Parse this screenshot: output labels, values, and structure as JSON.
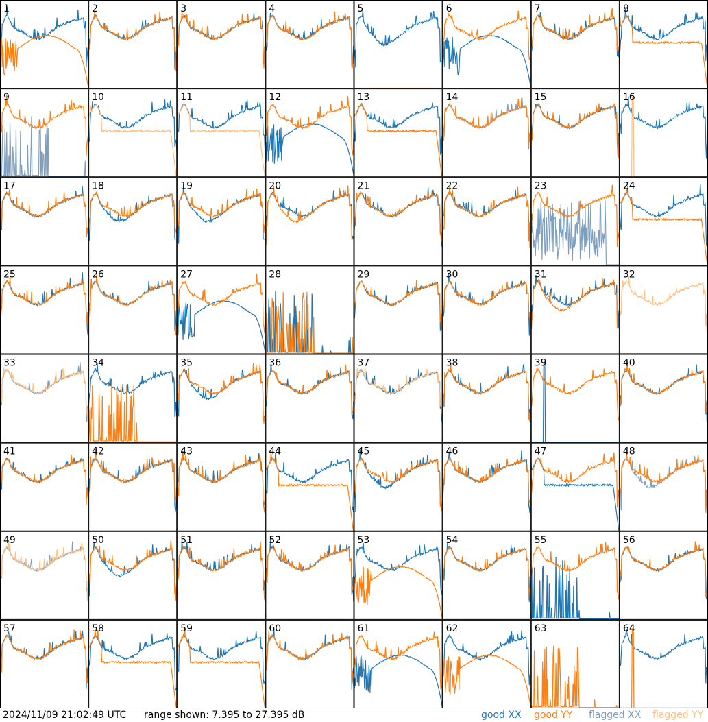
{
  "footer": {
    "timestamp": "2024/11/09 21:02:49 UTC",
    "range_text": "range shown: 7.395 to 27.395 dB",
    "legend": [
      {
        "label": "good XX",
        "color": "#1f77b4"
      },
      {
        "label": "good YY",
        "color": "#ff7f0e"
      },
      {
        "label": "flagged XX",
        "color": "#7f9fbf"
      },
      {
        "label": "flagged YY",
        "color": "#ffbf80"
      }
    ]
  },
  "chart_data": {
    "type": "line",
    "grid": {
      "rows": 8,
      "cols": 8
    },
    "ylim": [
      7.395,
      27.395
    ],
    "yunit": "dB",
    "colors": {
      "good_xx": "#1f77b4",
      "good_yy": "#ff7f0e",
      "flagged_xx": "#7f9fbf",
      "flagged_yy": "#ffbf80"
    },
    "panels": [
      {
        "id": "1",
        "xx": "good",
        "yy": "good",
        "xx_shape": "normal",
        "yy_shape": "hump_drop"
      },
      {
        "id": "2",
        "xx": "good",
        "yy": "good",
        "xx_shape": "normal",
        "yy_shape": "normal"
      },
      {
        "id": "3",
        "xx": "good",
        "yy": "good",
        "xx_shape": "normal",
        "yy_shape": "normal"
      },
      {
        "id": "4",
        "xx": "good",
        "yy": "good",
        "xx_shape": "normal",
        "yy_shape": "normal"
      },
      {
        "id": "5",
        "xx": "good",
        "yy": "flagged",
        "xx_shape": "dip",
        "yy_shape": "flat_zero"
      },
      {
        "id": "6",
        "xx": "good",
        "yy": "good",
        "xx_shape": "hump_drop",
        "yy_shape": "normal"
      },
      {
        "id": "7",
        "xx": "good",
        "yy": "good",
        "xx_shape": "normal",
        "yy_shape": "normal"
      },
      {
        "id": "8",
        "xx": "good",
        "yy": "good",
        "xx_shape": "normal",
        "yy_shape": "flat_mid"
      },
      {
        "id": "9",
        "xx": "flagged",
        "yy": "good",
        "xx_shape": "spiky_low",
        "yy_shape": "normal"
      },
      {
        "id": "10",
        "xx": "good",
        "yy": "flagged",
        "xx_shape": "normal",
        "yy_shape": "flat_mid"
      },
      {
        "id": "11",
        "xx": "good",
        "yy": "flagged",
        "xx_shape": "normal",
        "yy_shape": "flat_mid"
      },
      {
        "id": "12",
        "xx": "good",
        "yy": "good",
        "xx_shape": "hump_drop",
        "yy_shape": "normal"
      },
      {
        "id": "13",
        "xx": "good",
        "yy": "good",
        "xx_shape": "normal",
        "yy_shape": "flat_mid"
      },
      {
        "id": "14",
        "xx": "flagged",
        "yy": "good",
        "xx_shape": "normal",
        "yy_shape": "normal"
      },
      {
        "id": "15",
        "xx": "good",
        "yy": "good",
        "xx_shape": "normal",
        "yy_shape": "normal"
      },
      {
        "id": "16",
        "xx": "good",
        "yy": "flagged",
        "xx_shape": "normal",
        "yy_shape": "spike_zero"
      },
      {
        "id": "17",
        "xx": "good",
        "yy": "good",
        "xx_shape": "normal",
        "yy_shape": "normal"
      },
      {
        "id": "18",
        "xx": "good",
        "yy": "good",
        "xx_shape": "dip",
        "yy_shape": "normal"
      },
      {
        "id": "19",
        "xx": "good",
        "yy": "good",
        "xx_shape": "dip",
        "yy_shape": "normal"
      },
      {
        "id": "20",
        "xx": "good",
        "yy": "good",
        "xx_shape": "normal",
        "yy_shape": "dip"
      },
      {
        "id": "21",
        "xx": "good",
        "yy": "good",
        "xx_shape": "normal",
        "yy_shape": "normal"
      },
      {
        "id": "22",
        "xx": "good",
        "yy": "good",
        "xx_shape": "normal",
        "yy_shape": "normal"
      },
      {
        "id": "23",
        "xx": "flagged",
        "yy": "good",
        "xx_shape": "noise_low",
        "yy_shape": "normal"
      },
      {
        "id": "24",
        "xx": "good",
        "yy": "good",
        "xx_shape": "normal",
        "yy_shape": "flat_mid"
      },
      {
        "id": "25",
        "xx": "good",
        "yy": "good",
        "xx_shape": "normal",
        "yy_shape": "normal"
      },
      {
        "id": "26",
        "xx": "good",
        "yy": "good",
        "xx_shape": "normal",
        "yy_shape": "normal"
      },
      {
        "id": "27",
        "xx": "good",
        "yy": "good",
        "xx_shape": "hump_drop",
        "yy_shape": "normal"
      },
      {
        "id": "28",
        "xx": "good",
        "yy": "good",
        "xx_shape": "spiky_low",
        "yy_shape": "spiky_low"
      },
      {
        "id": "29",
        "xx": "good",
        "yy": "good",
        "xx_shape": "normal",
        "yy_shape": "normal"
      },
      {
        "id": "30",
        "xx": "good",
        "yy": "good",
        "xx_shape": "normal",
        "yy_shape": "normal"
      },
      {
        "id": "31",
        "xx": "good",
        "yy": "good",
        "xx_shape": "normal",
        "yy_shape": "dip"
      },
      {
        "id": "32",
        "xx": "flagged",
        "yy": "flagged",
        "xx_shape": "flat_zero",
        "yy_shape": "normal"
      },
      {
        "id": "33",
        "xx": "flagged",
        "yy": "flagged",
        "xx_shape": "normal",
        "yy_shape": "normal"
      },
      {
        "id": "34",
        "xx": "good",
        "yy": "good",
        "xx_shape": "normal",
        "yy_shape": "spiky_low"
      },
      {
        "id": "35",
        "xx": "good",
        "yy": "good",
        "xx_shape": "dip",
        "yy_shape": "normal"
      },
      {
        "id": "36",
        "xx": "good",
        "yy": "good",
        "xx_shape": "normal",
        "yy_shape": "normal"
      },
      {
        "id": "37",
        "xx": "good",
        "yy": "flagged",
        "xx_shape": "normal",
        "yy_shape": "normal"
      },
      {
        "id": "38",
        "xx": "good",
        "yy": "good",
        "xx_shape": "normal",
        "yy_shape": "normal"
      },
      {
        "id": "39",
        "xx": "good",
        "yy": "good",
        "xx_shape": "spike_zero",
        "yy_shape": "normal"
      },
      {
        "id": "40",
        "xx": "good",
        "yy": "good",
        "xx_shape": "normal",
        "yy_shape": "normal"
      },
      {
        "id": "41",
        "xx": "good",
        "yy": "good",
        "xx_shape": "normal",
        "yy_shape": "normal"
      },
      {
        "id": "42",
        "xx": "good",
        "yy": "good",
        "xx_shape": "normal",
        "yy_shape": "normal"
      },
      {
        "id": "43",
        "xx": "good",
        "yy": "good",
        "xx_shape": "normal",
        "yy_shape": "normal"
      },
      {
        "id": "44",
        "xx": "good",
        "yy": "good",
        "xx_shape": "normal",
        "yy_shape": "flat_mid"
      },
      {
        "id": "45",
        "xx": "good",
        "yy": "good",
        "xx_shape": "dip",
        "yy_shape": "normal"
      },
      {
        "id": "46",
        "xx": "good",
        "yy": "good",
        "xx_shape": "normal",
        "yy_shape": "normal"
      },
      {
        "id": "47",
        "xx": "good",
        "yy": "good",
        "xx_shape": "flat_mid",
        "yy_shape": "normal"
      },
      {
        "id": "48",
        "xx": "flagged",
        "yy": "good",
        "xx_shape": "dip",
        "yy_shape": "normal"
      },
      {
        "id": "49",
        "xx": "flagged",
        "yy": "flagged",
        "xx_shape": "normal",
        "yy_shape": "normal"
      },
      {
        "id": "50",
        "xx": "good",
        "yy": "good",
        "xx_shape": "dip",
        "yy_shape": "normal"
      },
      {
        "id": "51",
        "xx": "good",
        "yy": "good",
        "xx_shape": "normal",
        "yy_shape": "normal"
      },
      {
        "id": "52",
        "xx": "good",
        "yy": "good",
        "xx_shape": "normal",
        "yy_shape": "normal"
      },
      {
        "id": "53",
        "xx": "good",
        "yy": "good",
        "xx_shape": "normal",
        "yy_shape": "hump_drop"
      },
      {
        "id": "54",
        "xx": "good",
        "yy": "good",
        "xx_shape": "normal",
        "yy_shape": "normal"
      },
      {
        "id": "55",
        "xx": "good",
        "yy": "good",
        "xx_shape": "spiky_low",
        "yy_shape": "normal"
      },
      {
        "id": "56",
        "xx": "good",
        "yy": "good",
        "xx_shape": "normal",
        "yy_shape": "normal"
      },
      {
        "id": "57",
        "xx": "good",
        "yy": "good",
        "xx_shape": "normal",
        "yy_shape": "normal"
      },
      {
        "id": "58",
        "xx": "good",
        "yy": "good",
        "xx_shape": "normal",
        "yy_shape": "flat_mid"
      },
      {
        "id": "59",
        "xx": "good",
        "yy": "good",
        "xx_shape": "normal",
        "yy_shape": "flat_mid"
      },
      {
        "id": "60",
        "xx": "good",
        "yy": "good",
        "xx_shape": "normal",
        "yy_shape": "normal"
      },
      {
        "id": "61",
        "xx": "good",
        "yy": "good",
        "xx_shape": "hump_drop",
        "yy_shape": "normal"
      },
      {
        "id": "62",
        "xx": "good",
        "yy": "good",
        "xx_shape": "normal",
        "yy_shape": "hump_drop"
      },
      {
        "id": "63",
        "xx": "good",
        "yy": "good",
        "xx_shape": "flat_zero",
        "yy_shape": "spiky_low"
      },
      {
        "id": "64",
        "xx": "good",
        "yy": "good",
        "xx_shape": "normal",
        "yy_shape": "spike_zero"
      }
    ]
  }
}
